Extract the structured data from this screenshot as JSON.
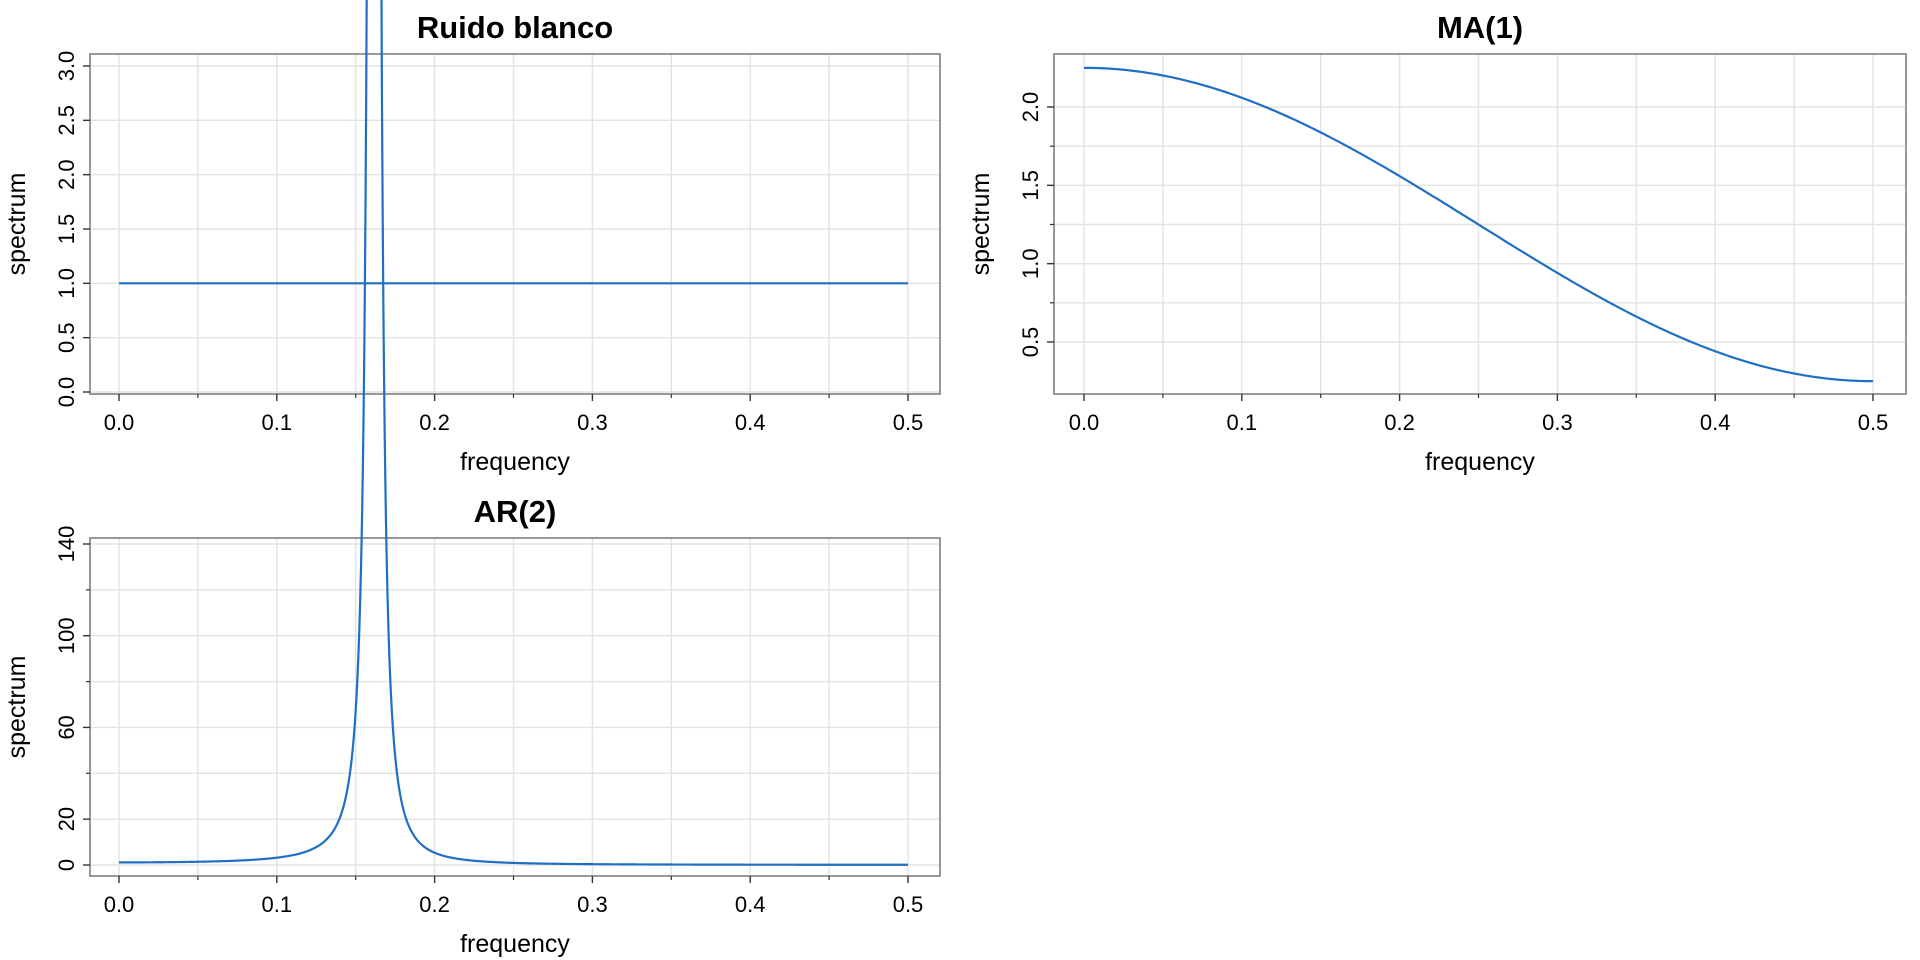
{
  "page": {
    "background": "#ffffff"
  },
  "style": {
    "line_color": "#1f6fc5",
    "grid_color": "#e3e3e3",
    "frame_color": "#7f7f7f"
  },
  "chart_data": [
    {
      "type": "line",
      "title": "Ruido blanco",
      "xlabel": "frequency",
      "ylabel": "spectrum",
      "xlim": [
        0,
        0.5
      ],
      "ylim": [
        0,
        3.0
      ],
      "xticks": [
        "0.0",
        "0.1",
        "0.2",
        "0.3",
        "0.4",
        "0.5"
      ],
      "yticks": [
        "0.0",
        "0.5",
        "1.0",
        "1.5",
        "2.0",
        "2.5",
        "3.0"
      ],
      "grid": true,
      "model": "white_noise",
      "series": [
        {
          "values": {
            "x": [
              0.0,
              0.05,
              0.1,
              0.15,
              0.2,
              0.25,
              0.3,
              0.35,
              0.4,
              0.45,
              0.5
            ],
            "y": [
              1.0,
              1.0,
              1.0,
              1.0,
              1.0,
              1.0,
              1.0,
              1.0,
              1.0,
              1.0,
              1.0
            ]
          }
        }
      ]
    },
    {
      "type": "line",
      "title": "MA(1)",
      "xlabel": "frequency",
      "ylabel": "spectrum",
      "xlim": [
        0,
        0.5
      ],
      "ylim": [
        0.25,
        2.25
      ],
      "xticks": [
        "0.0",
        "0.1",
        "0.2",
        "0.3",
        "0.4",
        "0.5"
      ],
      "yticks": [
        "0.5",
        "1.0",
        "1.5",
        "2.0"
      ],
      "grid": true,
      "model": "ma1",
      "series": [
        {
          "values": {
            "x": [
              0.0,
              0.05,
              0.1,
              0.15,
              0.2,
              0.25,
              0.3,
              0.35,
              0.4,
              0.45,
              0.5
            ],
            "y": [
              2.25,
              2.2,
              2.06,
              1.83,
              1.56,
              1.25,
              0.94,
              0.67,
              0.44,
              0.3,
              0.25
            ]
          }
        }
      ]
    },
    {
      "type": "line",
      "title": "AR(2)",
      "xlabel": "frequency",
      "ylabel": "spectrum",
      "xlim": [
        0,
        0.5
      ],
      "ylim": [
        0,
        137
      ],
      "xticks": [
        "0.0",
        "0.1",
        "0.2",
        "0.3",
        "0.4",
        "0.5"
      ],
      "yticks": [
        "0",
        "20",
        "60",
        "100",
        "140"
      ],
      "grid": true,
      "model": "ar2",
      "series": [
        {
          "values": {
            "x": [
              0.0,
              0.05,
              0.1,
              0.13,
              0.15,
              0.16,
              0.17,
              0.19,
              0.2,
              0.25,
              0.3,
              0.4,
              0.5
            ],
            "y": [
              1.0,
              1.9,
              5.0,
              17.0,
              60.0,
              136.0,
              60.0,
              10.0,
              6.0,
              1.8,
              0.6,
              0.4,
              0.3
            ]
          }
        }
      ]
    }
  ]
}
